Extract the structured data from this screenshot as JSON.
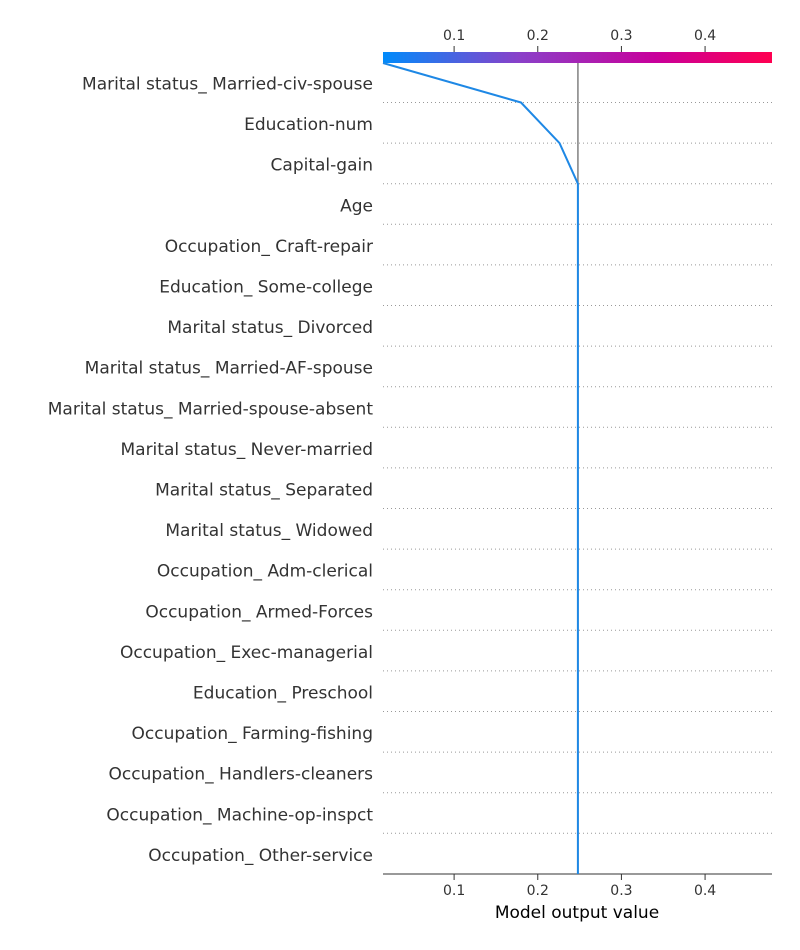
{
  "chart_data": {
    "type": "line",
    "title": "",
    "xlabel": "Model output value",
    "ylabel": "",
    "xlim": [
      0.015,
      0.48
    ],
    "xticks": [
      0.1,
      0.2,
      0.3,
      0.4
    ],
    "xtick_labels": [
      "0.1",
      "0.2",
      "0.3",
      "0.4"
    ],
    "top_xtick_labels": [
      "0.1",
      "0.2",
      "0.3",
      "0.4"
    ],
    "base_value": 0.248,
    "colorbar_colors": [
      "#008bfb",
      "#8a40c9",
      "#c8009b",
      "#ff0051"
    ],
    "features": [
      "Marital status_ Married-civ-spouse",
      "Education-num",
      "Capital-gain",
      "Age",
      "Occupation_ Craft-repair",
      "Education_ Some-college",
      "Marital status_ Divorced",
      "Marital status_ Married-AF-spouse",
      "Marital status_ Married-spouse-absent",
      "Marital status_ Never-married",
      "Marital status_ Separated",
      "Marital status_ Widowed",
      "Occupation_ Adm-clerical",
      "Occupation_ Armed-Forces",
      "Occupation_ Exec-managerial",
      "Education_ Preschool",
      "Occupation_ Farming-fishing",
      "Occupation_ Handlers-cleaners",
      "Occupation_ Machine-op-inspct",
      "Occupation_ Other-service"
    ],
    "decision_path": [
      0.015,
      0.18,
      0.226,
      0.248,
      0.248,
      0.248,
      0.248,
      0.248,
      0.248,
      0.248,
      0.248,
      0.248,
      0.248,
      0.248,
      0.248,
      0.248,
      0.248,
      0.248,
      0.248,
      0.248,
      0.248
    ],
    "line_color": "#1e88e5",
    "base_line_color": "#808080"
  }
}
